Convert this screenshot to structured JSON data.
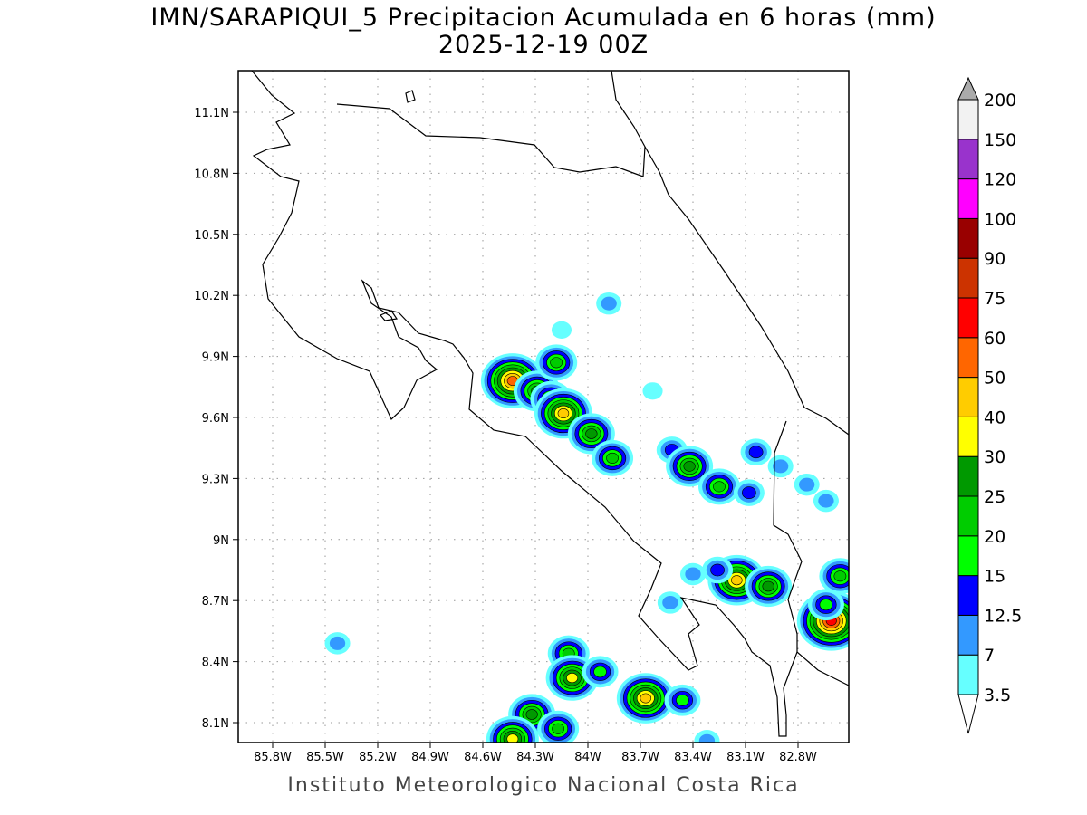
{
  "title": "IMN/SARAPIQUI_5 Precipitacion Acumulada en 6 horas (mm)",
  "subtitle": "2025-12-19 00Z",
  "footer": "Instituto Meteorologico Nacional Costa Rica",
  "map": {
    "lon_range_W": [
      86.0,
      82.5
    ],
    "lat_range_N": [
      8.0,
      11.3
    ],
    "lon_ticks": [
      "85.8W",
      "85.5W",
      "85.2W",
      "84.9W",
      "84.6W",
      "84.3W",
      "84W",
      "83.7W",
      "83.4W",
      "83.1W",
      "82.8W"
    ],
    "lon_tick_values": [
      85.8,
      85.5,
      85.2,
      84.9,
      84.6,
      84.3,
      84.0,
      83.7,
      83.4,
      83.1,
      82.8
    ],
    "lat_ticks": [
      "11.1N",
      "10.8N",
      "10.5N",
      "10.2N",
      "9.9N",
      "9.6N",
      "9.3N",
      "9N",
      "8.7N",
      "8.4N",
      "8.1N"
    ],
    "lat_tick_values": [
      11.1,
      10.8,
      10.5,
      10.2,
      9.9,
      9.6,
      9.3,
      9.0,
      8.7,
      8.4,
      8.1
    ]
  },
  "colorbar": {
    "labels": [
      "3.5",
      "7",
      "12.5",
      "15",
      "20",
      "25",
      "30",
      "40",
      "50",
      "60",
      "75",
      "90",
      "100",
      "120",
      "150",
      "200"
    ],
    "colors": [
      "#66ffff",
      "#3399ff",
      "#0000ff",
      "#00ff00",
      "#00cc00",
      "#009900",
      "#ffff00",
      "#ffcc00",
      "#ff6600",
      "#ff0000",
      "#cc3300",
      "#990000",
      "#ff00ff",
      "#9933cc",
      "#f2f2f2"
    ],
    "over_color": "#aaaaaa",
    "under_color": "#ffffff"
  },
  "rain_cells": [
    {
      "lon": 84.43,
      "lat": 9.78,
      "peak": 50
    },
    {
      "lon": 84.29,
      "lat": 9.73,
      "peak": 25
    },
    {
      "lon": 84.21,
      "lat": 9.69,
      "peak": 20
    },
    {
      "lon": 84.18,
      "lat": 9.87,
      "peak": 20
    },
    {
      "lon": 84.14,
      "lat": 9.62,
      "peak": 40
    },
    {
      "lon": 83.98,
      "lat": 9.52,
      "peak": 25
    },
    {
      "lon": 83.86,
      "lat": 9.4,
      "peak": 20
    },
    {
      "lon": 83.88,
      "lat": 10.16,
      "peak": 7
    },
    {
      "lon": 84.15,
      "lat": 10.03,
      "peak": 3.5
    },
    {
      "lon": 83.52,
      "lat": 9.44,
      "peak": 12.5
    },
    {
      "lon": 83.42,
      "lat": 9.36,
      "peak": 25
    },
    {
      "lon": 83.25,
      "lat": 9.26,
      "peak": 20
    },
    {
      "lon": 83.08,
      "lat": 9.23,
      "peak": 12.5
    },
    {
      "lon": 83.04,
      "lat": 9.43,
      "peak": 12.5
    },
    {
      "lon": 83.15,
      "lat": 8.8,
      "peak": 40
    },
    {
      "lon": 82.97,
      "lat": 8.77,
      "peak": 25
    },
    {
      "lon": 82.61,
      "lat": 8.6,
      "peak": 60
    },
    {
      "lon": 82.56,
      "lat": 8.82,
      "peak": 20
    },
    {
      "lon": 82.64,
      "lat": 8.68,
      "peak": 15
    },
    {
      "lon": 84.11,
      "lat": 8.44,
      "peak": 20
    },
    {
      "lon": 84.09,
      "lat": 8.32,
      "peak": 30
    },
    {
      "lon": 83.93,
      "lat": 8.35,
      "peak": 15
    },
    {
      "lon": 83.67,
      "lat": 8.22,
      "peak": 40
    },
    {
      "lon": 83.46,
      "lat": 8.21,
      "peak": 15
    },
    {
      "lon": 84.32,
      "lat": 8.14,
      "peak": 25
    },
    {
      "lon": 84.17,
      "lat": 8.07,
      "peak": 20
    },
    {
      "lon": 84.43,
      "lat": 8.02,
      "peak": 30
    },
    {
      "lon": 85.43,
      "lat": 8.49,
      "peak": 7
    },
    {
      "lon": 83.32,
      "lat": 8.01,
      "peak": 7
    },
    {
      "lon": 82.9,
      "lat": 9.36,
      "peak": 7
    },
    {
      "lon": 82.75,
      "lat": 9.27,
      "peak": 7
    },
    {
      "lon": 82.64,
      "lat": 9.19,
      "peak": 7
    },
    {
      "lon": 83.53,
      "lat": 8.69,
      "peak": 7
    },
    {
      "lon": 83.4,
      "lat": 8.83,
      "peak": 7
    },
    {
      "lon": 83.26,
      "lat": 8.85,
      "peak": 12.5
    },
    {
      "lon": 83.63,
      "lat": 9.73,
      "peak": 3.5
    }
  ]
}
